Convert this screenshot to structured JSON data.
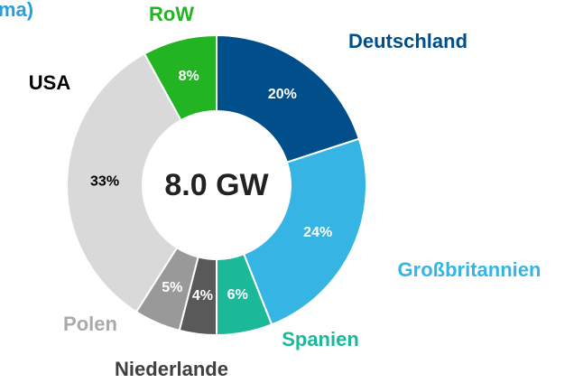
{
  "chart_data": {
    "type": "donut",
    "title": "ma)",
    "center_label": "8.0 GW",
    "categories": [
      "Deutschland",
      "Großbritannien",
      "Spanien",
      "Niederlande",
      "Polen",
      "USA",
      "RoW"
    ],
    "values": [
      20,
      24,
      6,
      4,
      5,
      33,
      8
    ],
    "value_labels": [
      "20%",
      "24%",
      "6%",
      "4%",
      "5%",
      "33%",
      "8%"
    ],
    "colors": [
      "#004f8a",
      "#36b5e5",
      "#1cb89a",
      "#595959",
      "#999999",
      "#d9d9d9",
      "#22b422"
    ]
  }
}
